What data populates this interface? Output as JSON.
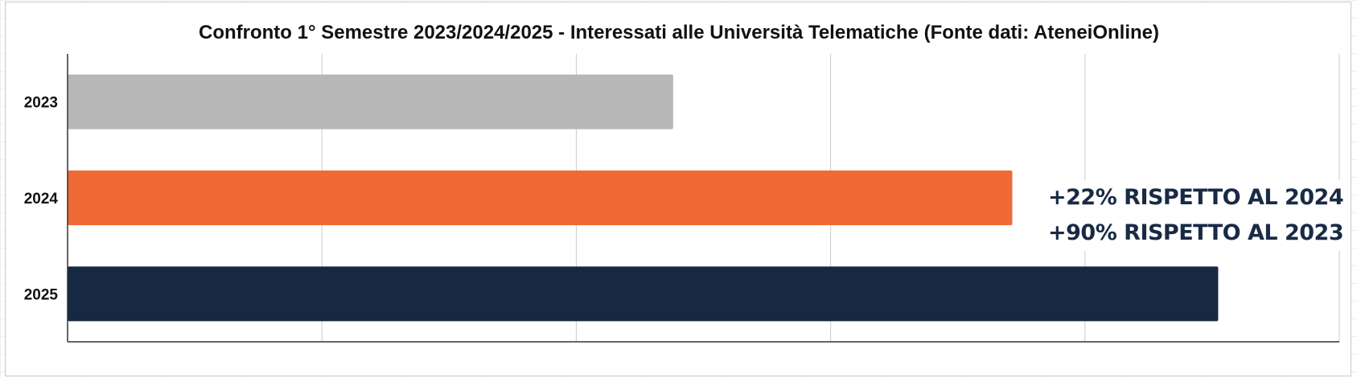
{
  "chart_data": {
    "type": "bar",
    "orientation": "horizontal",
    "title": "Confronto 1° Semestre 2023/2024/2025 - Interessati alle Università Telematiche (Fonte dati: AteneiOnline)",
    "categories": [
      "2023",
      "2024",
      "2025"
    ],
    "values": [
      100,
      156,
      190
    ],
    "colors": [
      "#b7b7b7",
      "#f06a35",
      "#172843"
    ],
    "xlim": [
      0,
      210
    ],
    "grid": true,
    "xticks_visible": false,
    "legend": "none",
    "annotations": [
      "+22% RISPETTO AL 2024",
      "+90% RISPETTO AL 2023"
    ]
  }
}
